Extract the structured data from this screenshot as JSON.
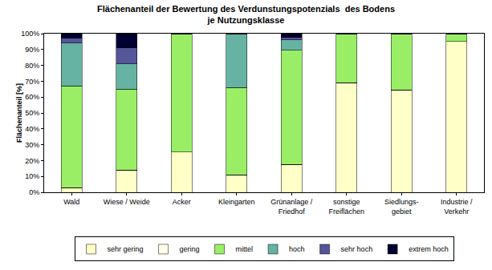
{
  "chart_data": {
    "type": "bar",
    "stacked": true,
    "title": "Flächenanteil der Bewertung des Verdunstungspotenzials  des Bodens\nje Nutzungsklasse",
    "y_label": "Flächenanteil [%]",
    "categories": [
      "Wald",
      "Wiese / Weide",
      "Acker",
      "Kleingarten",
      "Grünanlage /\nFriedhof",
      "sonstige\nFreiflächen",
      "Siedlungs-\ngebiet",
      "Industrie /\nVerkehr"
    ],
    "series": [
      {
        "name": "sehr gering",
        "color": "#ffffc8",
        "values": [
          3,
          14,
          25.5,
          11,
          17.5,
          69,
          64.5,
          95
        ]
      },
      {
        "name": "gering",
        "color": "#ffffe8",
        "values": [
          0,
          0,
          0,
          0,
          0,
          0,
          0,
          0
        ]
      },
      {
        "name": "mittel",
        "color": "#99ee66",
        "values": [
          64,
          51,
          74,
          55,
          72,
          31,
          35,
          5
        ]
      },
      {
        "name": "hoch",
        "color": "#66b3a3",
        "values": [
          27,
          16,
          0.5,
          34,
          6.5,
          0,
          0.5,
          0
        ]
      },
      {
        "name": "sehr hoch",
        "color": "#555599",
        "values": [
          3,
          10,
          0,
          0,
          1.5,
          0,
          0,
          0
        ]
      },
      {
        "name": "extrem hoch",
        "color": "#000033",
        "values": [
          3,
          9,
          0,
          0,
          2.5,
          0,
          0,
          0
        ]
      }
    ],
    "ylim": [
      0,
      100
    ],
    "yticks": [
      {
        "value": 0,
        "label": "0%"
      },
      {
        "value": 10,
        "label": "10%"
      },
      {
        "value": 20,
        "label": "20%"
      },
      {
        "value": 30,
        "label": "30%"
      },
      {
        "value": 40,
        "label": "40%"
      },
      {
        "value": 50,
        "label": "50%"
      },
      {
        "value": 60,
        "label": "60%"
      },
      {
        "value": 70,
        "label": "70%"
      },
      {
        "value": 80,
        "label": "80%"
      },
      {
        "value": 90,
        "label": "90%"
      },
      {
        "value": 100,
        "label": "100%"
      }
    ],
    "grid": false,
    "legend": "bottom"
  }
}
